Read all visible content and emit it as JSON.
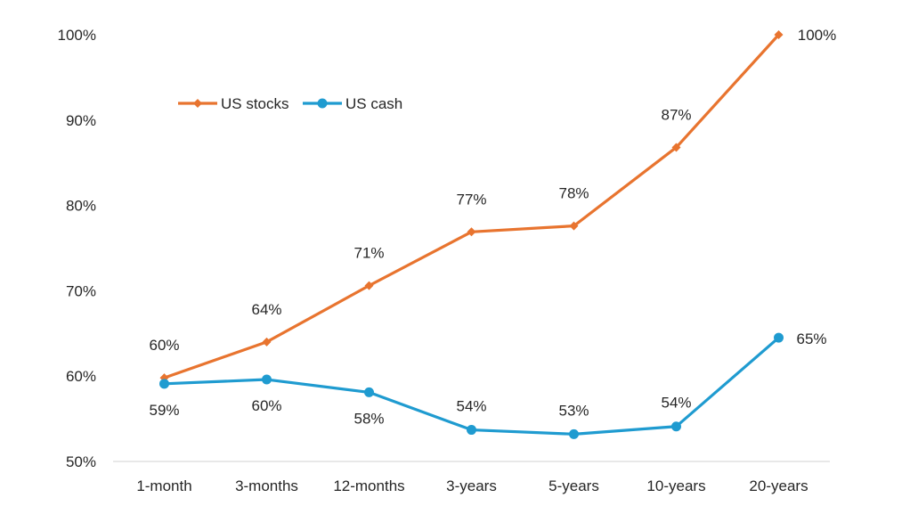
{
  "chart_data": {
    "type": "line",
    "categories": [
      "1-month",
      "3-months",
      "12-months",
      "3-years",
      "5-years",
      "10-years",
      "20-years"
    ],
    "series": [
      {
        "name": "US stocks",
        "values": [
          59.8,
          64.0,
          70.6,
          76.9,
          77.6,
          86.8,
          100
        ],
        "labels": [
          "60%",
          "64%",
          "71%",
          "77%",
          "78%",
          "87%",
          "100%"
        ],
        "color": "#e8742f",
        "marker": "diamond"
      },
      {
        "name": "US cash",
        "values": [
          59.1,
          59.6,
          58.1,
          53.7,
          53.2,
          54.1,
          64.5
        ],
        "labels": [
          "59%",
          "60%",
          "58%",
          "54%",
          "53%",
          "54%",
          "65%"
        ],
        "color": "#1f9bd0",
        "marker": "circle"
      }
    ],
    "y_ticks": [
      50,
      60,
      70,
      80,
      90,
      100
    ],
    "y_tick_labels": [
      "50%",
      "60%",
      "70%",
      "80%",
      "90%",
      "100%"
    ],
    "ylim": [
      50,
      100
    ],
    "grid": false,
    "legend_position": "top-left"
  }
}
